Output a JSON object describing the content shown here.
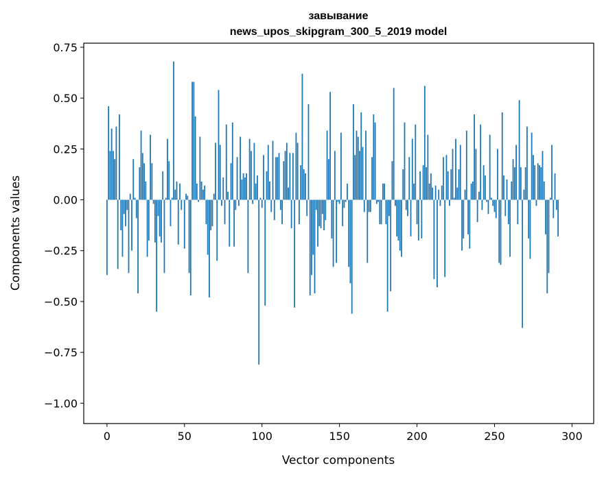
{
  "chart_data": {
    "type": "bar",
    "title": "завывание",
    "subtitle": "news_upos_skipgram_300_5_2019 model",
    "xlabel": "Vector components",
    "ylabel": "Components values",
    "xlim": [
      -15,
      314
    ],
    "ylim": [
      -1.1,
      0.77
    ],
    "xticks": [
      0,
      50,
      100,
      150,
      200,
      250,
      300
    ],
    "xtick_labels": [
      "0",
      "50",
      "100",
      "150",
      "200",
      "250",
      "300"
    ],
    "yticks": [
      0.75,
      0.5,
      0.25,
      0.0,
      -0.25,
      -0.5,
      -0.75,
      -1.0
    ],
    "ytick_labels": [
      "0.75",
      "0.50",
      "0.25",
      "0.00",
      "−0.25",
      "−0.50",
      "−0.75",
      "−1.00"
    ],
    "grid": false,
    "bar_color": "#1f77b4",
    "values": [
      -0.37,
      0.46,
      0.24,
      0.35,
      0.24,
      0.2,
      0.36,
      -0.34,
      0.42,
      -0.15,
      -0.28,
      -0.07,
      -0.13,
      -0.05,
      -0.36,
      0.03,
      -0.25,
      0.2,
      0.01,
      -0.09,
      -0.46,
      0.16,
      0.34,
      0.23,
      0.18,
      0.09,
      -0.28,
      -0.2,
      0.32,
      0.18,
      -0.02,
      -0.21,
      -0.55,
      -0.08,
      -0.18,
      -0.21,
      0.14,
      -0.36,
      0.01,
      0.3,
      0.19,
      -0.13,
      0.01,
      0.68,
      0.05,
      0.09,
      -0.22,
      0.08,
      -0.05,
      0.0,
      -0.24,
      0.03,
      0.02,
      -0.36,
      -0.47,
      0.58,
      0.58,
      0.41,
      0.08,
      -0.01,
      0.31,
      0.09,
      0.05,
      0.07,
      -0.12,
      -0.27,
      -0.48,
      -0.15,
      -0.13,
      0.03,
      0.28,
      -0.3,
      0.54,
      0.27,
      -0.03,
      0.11,
      -0.12,
      0.37,
      0.04,
      -0.23,
      0.18,
      0.38,
      -0.23,
      -0.05,
      0.21,
      -0.03,
      0.31,
      0.1,
      0.13,
      0.11,
      0.13,
      -0.36,
      0.3,
      0.24,
      -0.02,
      0.28,
      0.08,
      0.12,
      -0.81,
      0.01,
      -0.04,
      0.22,
      -0.52,
      0.14,
      0.27,
      0.09,
      -0.06,
      0.29,
      -0.1,
      0.21,
      0.21,
      0.23,
      -0.05,
      -0.12,
      0.19,
      0.24,
      0.28,
      0.06,
      0.23,
      -0.14,
      0.23,
      -0.53,
      0.33,
      0.28,
      -0.12,
      0.17,
      0.62,
      0.15,
      0.13,
      -0.08,
      0.47,
      -0.47,
      -0.37,
      -0.27,
      -0.46,
      -0.05,
      -0.23,
      -0.13,
      -0.14,
      -0.07,
      -0.15,
      -0.1,
      0.34,
      0.2,
      0.53,
      -0.19,
      -0.33,
      0.24,
      -0.31,
      -0.01,
      -0.02,
      0.33,
      -0.13,
      -0.04,
      -0.01,
      0.08,
      -0.33,
      -0.41,
      -0.56,
      0.47,
      0.22,
      0.34,
      0.31,
      0.24,
      0.43,
      0.26,
      -0.06,
      0.34,
      -0.31,
      -0.06,
      -0.06,
      0.21,
      0.42,
      0.38,
      -0.02,
      -0.01,
      -0.12,
      -0.12,
      0.08,
      0.08,
      -0.12,
      -0.55,
      -0.08,
      -0.45,
      0.19,
      0.55,
      -0.03,
      -0.18,
      -0.2,
      -0.25,
      -0.28,
      0.15,
      0.38,
      -0.05,
      -0.08,
      0.21,
      -0.18,
      0.3,
      0.08,
      0.37,
      -0.12,
      -0.2,
      0.14,
      -0.19,
      0.17,
      0.56,
      0.16,
      0.32,
      0.08,
      0.13,
      0.06,
      -0.39,
      0.07,
      -0.43,
      0.05,
      -0.03,
      0.07,
      0.21,
      -0.38,
      0.22,
      0.14,
      -0.03,
      0.15,
      0.25,
      0.01,
      0.3,
      0.06,
      0.15,
      0.27,
      -0.25,
      -0.19,
      0.05,
      0.34,
      -0.17,
      -0.24,
      0.08,
      0.09,
      0.42,
      0.25,
      -0.11,
      0.04,
      0.37,
      -0.05,
      0.17,
      0.12,
      -0.01,
      -0.07,
      0.32,
      0.01,
      -0.03,
      -0.06,
      -0.09,
      0.25,
      -0.31,
      -0.32,
      0.43,
      0.12,
      -0.08,
      0.1,
      -0.12,
      -0.28,
      0.09,
      0.2,
      0.16,
      0.27,
      -0.12,
      0.49,
      0.16,
      -0.63,
      0.05,
      0.16,
      0.36,
      -0.19,
      -0.29,
      0.33,
      0.22,
      0.17,
      -0.03,
      0.18,
      0.17,
      0.16,
      0.24,
      0.09,
      -0.17,
      -0.46,
      -0.36,
      0.01,
      0.27,
      -0.09,
      0.13,
      -0.05,
      -0.18,
      0.0
    ]
  }
}
